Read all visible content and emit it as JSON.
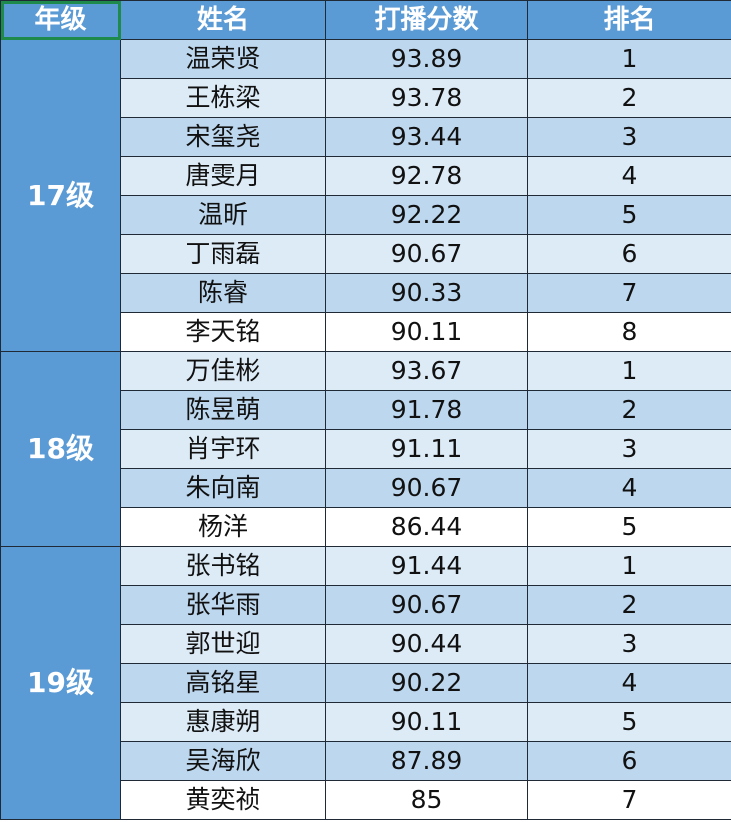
{
  "headers": {
    "grade": "年级",
    "name": "姓名",
    "score": "打播分数",
    "rank": "排名"
  },
  "colors": {
    "header": "#5b9bd5",
    "row_dark": "#bdd7ee",
    "row_light": "#ddebf7",
    "selection": "#1e8a4c"
  },
  "groups": [
    {
      "grade": "17级",
      "rows": [
        {
          "name": "温荣贤",
          "score": "93.89",
          "rank": "1",
          "shade": "dark"
        },
        {
          "name": "王栋梁",
          "score": "93.78",
          "rank": "2",
          "shade": "light"
        },
        {
          "name": "宋玺尧",
          "score": "93.44",
          "rank": "3",
          "shade": "dark"
        },
        {
          "name": "唐雯月",
          "score": "92.78",
          "rank": "4",
          "shade": "light"
        },
        {
          "name": "温昕",
          "score": "92.22",
          "rank": "5",
          "shade": "dark"
        },
        {
          "name": "丁雨磊",
          "score": "90.67",
          "rank": "6",
          "shade": "light"
        },
        {
          "name": "陈睿",
          "score": "90.33",
          "rank": "7",
          "shade": "dark"
        },
        {
          "name": "李天铭",
          "score": "90.11",
          "rank": "8",
          "shade": "white"
        }
      ]
    },
    {
      "grade": "18级",
      "rows": [
        {
          "name": "万佳彬",
          "score": "93.67",
          "rank": "1",
          "shade": "light"
        },
        {
          "name": "陈昱萌",
          "score": "91.78",
          "rank": "2",
          "shade": "dark"
        },
        {
          "name": "肖宇环",
          "score": "91.11",
          "rank": "3",
          "shade": "light"
        },
        {
          "name": "朱向南",
          "score": "90.67",
          "rank": "4",
          "shade": "dark"
        },
        {
          "name": "杨洋",
          "score": "86.44",
          "rank": "5",
          "shade": "white"
        }
      ]
    },
    {
      "grade": "19级",
      "rows": [
        {
          "name": "张书铭",
          "score": "91.44",
          "rank": "1",
          "shade": "light"
        },
        {
          "name": "张华雨",
          "score": "90.67",
          "rank": "2",
          "shade": "dark"
        },
        {
          "name": "郭世迎",
          "score": "90.44",
          "rank": "3",
          "shade": "light"
        },
        {
          "name": "高铭星",
          "score": "90.22",
          "rank": "4",
          "shade": "dark"
        },
        {
          "name": "惠康朔",
          "score": "90.11",
          "rank": "5",
          "shade": "light"
        },
        {
          "name": "吴海欣",
          "score": "87.89",
          "rank": "6",
          "shade": "dark"
        },
        {
          "name": "黄奕祯",
          "score": "85",
          "rank": "7",
          "shade": "white"
        }
      ]
    }
  ]
}
